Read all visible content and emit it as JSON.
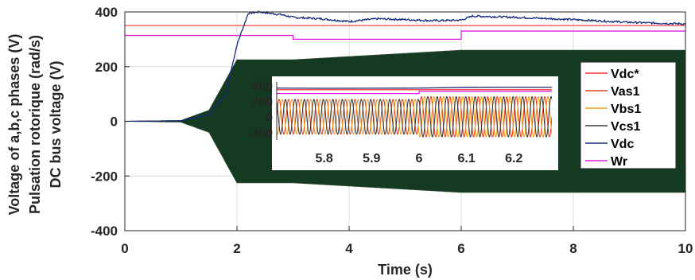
{
  "chart_data": [
    {
      "type": "line",
      "xlabel": "Time (s)",
      "ylabel": [
        "Voltage of a,b,c phases (V)",
        "Pulsation rotorique (rad/s)",
        "DC bus voltage (V)"
      ],
      "xlim": [
        0,
        10
      ],
      "ylim": [
        -400,
        400
      ],
      "x_ticks": [
        "0",
        "2",
        "4",
        "6",
        "8",
        "10"
      ],
      "y_ticks": [
        "-400",
        "-200",
        "0",
        "200",
        "400"
      ],
      "grid": true,
      "legend_position": "right",
      "series": [
        {
          "name": "Vdc*",
          "color": "#ff3030",
          "x": [
            0,
            10
          ],
          "y": [
            350,
            350
          ]
        },
        {
          "name": "Vas1",
          "color": "#e0451f",
          "kind": "sinusoid",
          "amplitude_envelope": {
            "t": [
              0,
              1,
              1.5,
              2,
              3,
              6,
              10
            ],
            "amp": [
              0,
              3,
              40,
              225,
              225,
              260,
              260
            ]
          }
        },
        {
          "name": "Vbs1",
          "color": "#f0a020",
          "kind": "sinusoid",
          "amplitude_envelope": {
            "t": [
              0,
              1,
              1.5,
              2,
              3,
              6,
              10
            ],
            "amp": [
              0,
              3,
              40,
              225,
              225,
              260,
              260
            ]
          }
        },
        {
          "name": "Vcs1",
          "color": "#3a3a3a",
          "kind": "sinusoid",
          "amplitude_envelope": {
            "t": [
              0,
              1,
              1.5,
              2,
              3,
              6,
              10
            ],
            "amp": [
              0,
              3,
              40,
              225,
              225,
              260,
              260
            ]
          }
        },
        {
          "name": "Vdc",
          "color": "#14287a",
          "x": [
            0,
            1.0,
            1.5,
            1.8,
            2.0,
            2.2,
            2.4,
            2.8,
            3.0,
            3.5,
            4.0,
            4.5,
            5.0,
            5.5,
            6.0,
            6.2,
            7.0,
            8.0,
            9.0,
            10.0
          ],
          "y": [
            0,
            2,
            25,
            100,
            280,
            395,
            400,
            390,
            380,
            375,
            365,
            375,
            372,
            368,
            370,
            385,
            380,
            372,
            362,
            356
          ]
        },
        {
          "name": "Wr",
          "color": "#e020e0",
          "x": [
            0,
            3.0,
            3.0,
            6.0,
            6.0,
            10
          ],
          "y": [
            314,
            314,
            300,
            300,
            330,
            330
          ]
        }
      ]
    },
    {
      "type": "line",
      "role": "inset",
      "xlim": [
        5.7,
        6.28
      ],
      "ylim": [
        -300,
        450
      ],
      "x_ticks": [
        "5.8",
        "5.9",
        "6",
        "6.1",
        "6.2"
      ],
      "y_ticks": [
        "400",
        "200",
        "0",
        "-200"
      ],
      "series": [
        {
          "name": "Vdc",
          "color": "#14287a",
          "x": [
            5.7,
            5.8,
            5.9,
            6.0,
            6.1,
            6.2,
            6.28
          ],
          "y": [
            370,
            368,
            369,
            370,
            380,
            382,
            381
          ]
        },
        {
          "name": "Vdc*",
          "color": "#ff3030",
          "x": [
            5.7,
            6.28
          ],
          "y": [
            350,
            350
          ]
        },
        {
          "name": "Wr",
          "color": "#e020e0",
          "x": [
            5.7,
            6.0,
            6.0,
            6.28
          ],
          "y": [
            300,
            300,
            330,
            330
          ]
        },
        {
          "name": "Vas1",
          "color": "#e0451f",
          "kind": "sinusoid",
          "amplitude_envelope": {
            "t": [
              5.7,
              6.0,
              6.0,
              6.28
            ],
            "amp": [
              225,
              225,
              260,
              260
            ]
          }
        },
        {
          "name": "Vbs1",
          "color": "#f0a020",
          "kind": "sinusoid",
          "amplitude_envelope": {
            "t": [
              5.7,
              6.0,
              6.0,
              6.28
            ],
            "amp": [
              225,
              225,
              260,
              260
            ]
          }
        },
        {
          "name": "Vcs1",
          "color": "#3a3a3a",
          "kind": "sinusoid",
          "amplitude_envelope": {
            "t": [
              5.7,
              6.0,
              6.0,
              6.28
            ],
            "amp": [
              225,
              225,
              260,
              260
            ]
          }
        }
      ]
    }
  ]
}
